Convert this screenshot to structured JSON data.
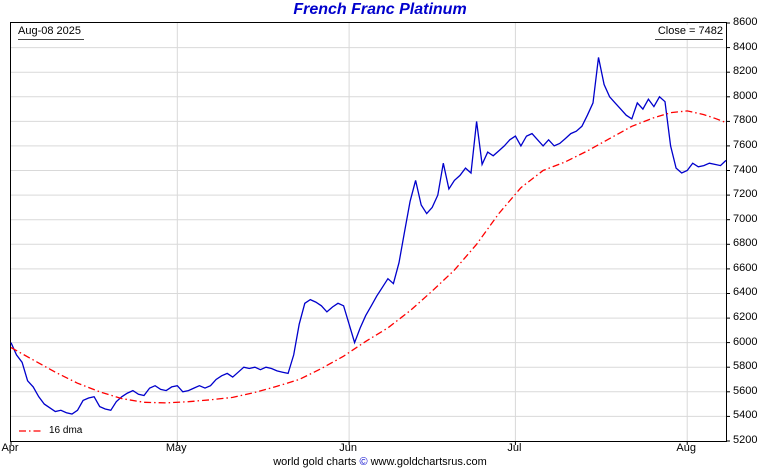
{
  "title": "French Franc Platinum",
  "header": {
    "date_label": "Aug-08 2025",
    "close_label": "Close = 7482"
  },
  "legend": {
    "dma_label": "16 dma"
  },
  "footer": {
    "prefix": "world gold charts ",
    "copyright": "©",
    "suffix": " www.goldchartsrus.com"
  },
  "colors": {
    "title": "#0000cc",
    "price_line": "#0000cc",
    "dma_line": "#ff0000",
    "grid": "#d9d9d9",
    "border": "#000000"
  },
  "chart_data": {
    "type": "line",
    "title": "French Franc Platinum",
    "date": "Aug-08 2025",
    "close": 7482,
    "legend_position": "bottom-left",
    "grid": true,
    "x_axis": {
      "x_max": 129,
      "ticks": [
        {
          "label": "Apr",
          "day": 0
        },
        {
          "label": "May",
          "day": 30
        },
        {
          "label": "Jun",
          "day": 61
        },
        {
          "label": "Jul",
          "day": 91
        },
        {
          "label": "Aug",
          "day": 122
        }
      ]
    },
    "y_axis": {
      "side": "right",
      "ylim": [
        5200,
        8600
      ],
      "ticks": [
        5200,
        5400,
        5600,
        5800,
        6000,
        6200,
        6400,
        6600,
        6800,
        7000,
        7200,
        7400,
        7600,
        7800,
        8000,
        8200,
        8400,
        8600
      ]
    },
    "series": [
      {
        "id": "price-series",
        "name": "price",
        "color": "#0000cc",
        "style": "solid",
        "points": [
          [
            0,
            6000
          ],
          [
            1,
            5900
          ],
          [
            2,
            5840
          ],
          [
            3,
            5690
          ],
          [
            4,
            5640
          ],
          [
            5,
            5560
          ],
          [
            6,
            5500
          ],
          [
            7,
            5470
          ],
          [
            8,
            5440
          ],
          [
            9,
            5450
          ],
          [
            10,
            5430
          ],
          [
            11,
            5420
          ],
          [
            12,
            5450
          ],
          [
            13,
            5530
          ],
          [
            14,
            5550
          ],
          [
            15,
            5560
          ],
          [
            16,
            5480
          ],
          [
            17,
            5460
          ],
          [
            18,
            5450
          ],
          [
            19,
            5520
          ],
          [
            20,
            5560
          ],
          [
            21,
            5590
          ],
          [
            22,
            5610
          ],
          [
            23,
            5580
          ],
          [
            24,
            5570
          ],
          [
            25,
            5630
          ],
          [
            26,
            5650
          ],
          [
            27,
            5620
          ],
          [
            28,
            5610
          ],
          [
            29,
            5640
          ],
          [
            30,
            5650
          ],
          [
            31,
            5600
          ],
          [
            32,
            5610
          ],
          [
            33,
            5630
          ],
          [
            34,
            5650
          ],
          [
            35,
            5630
          ],
          [
            36,
            5650
          ],
          [
            37,
            5700
          ],
          [
            38,
            5730
          ],
          [
            39,
            5750
          ],
          [
            40,
            5720
          ],
          [
            41,
            5760
          ],
          [
            42,
            5800
          ],
          [
            43,
            5790
          ],
          [
            44,
            5800
          ],
          [
            45,
            5780
          ],
          [
            46,
            5800
          ],
          [
            47,
            5790
          ],
          [
            48,
            5770
          ],
          [
            49,
            5760
          ],
          [
            50,
            5750
          ],
          [
            51,
            5900
          ],
          [
            52,
            6150
          ],
          [
            53,
            6320
          ],
          [
            54,
            6350
          ],
          [
            55,
            6330
          ],
          [
            56,
            6300
          ],
          [
            57,
            6250
          ],
          [
            58,
            6290
          ],
          [
            59,
            6320
          ],
          [
            60,
            6300
          ],
          [
            61,
            6150
          ],
          [
            62,
            6000
          ],
          [
            63,
            6120
          ],
          [
            64,
            6220
          ],
          [
            65,
            6300
          ],
          [
            66,
            6380
          ],
          [
            67,
            6450
          ],
          [
            68,
            6520
          ],
          [
            69,
            6480
          ],
          [
            70,
            6650
          ],
          [
            71,
            6900
          ],
          [
            72,
            7150
          ],
          [
            73,
            7320
          ],
          [
            74,
            7120
          ],
          [
            75,
            7050
          ],
          [
            76,
            7100
          ],
          [
            77,
            7200
          ],
          [
            78,
            7460
          ],
          [
            79,
            7250
          ],
          [
            80,
            7320
          ],
          [
            81,
            7360
          ],
          [
            82,
            7420
          ],
          [
            83,
            7380
          ],
          [
            84,
            7800
          ],
          [
            85,
            7450
          ],
          [
            86,
            7550
          ],
          [
            87,
            7520
          ],
          [
            88,
            7560
          ],
          [
            89,
            7600
          ],
          [
            90,
            7650
          ],
          [
            91,
            7680
          ],
          [
            92,
            7600
          ],
          [
            93,
            7680
          ],
          [
            94,
            7700
          ],
          [
            95,
            7650
          ],
          [
            96,
            7600
          ],
          [
            97,
            7650
          ],
          [
            98,
            7600
          ],
          [
            99,
            7620
          ],
          [
            100,
            7660
          ],
          [
            101,
            7700
          ],
          [
            102,
            7720
          ],
          [
            103,
            7760
          ],
          [
            104,
            7850
          ],
          [
            105,
            7950
          ],
          [
            106,
            8320
          ],
          [
            107,
            8100
          ],
          [
            108,
            8000
          ],
          [
            109,
            7950
          ],
          [
            110,
            7900
          ],
          [
            111,
            7850
          ],
          [
            112,
            7820
          ],
          [
            113,
            7950
          ],
          [
            114,
            7900
          ],
          [
            115,
            7980
          ],
          [
            116,
            7920
          ],
          [
            117,
            8000
          ],
          [
            118,
            7960
          ],
          [
            119,
            7600
          ],
          [
            120,
            7420
          ],
          [
            121,
            7380
          ],
          [
            122,
            7400
          ],
          [
            123,
            7460
          ],
          [
            124,
            7430
          ],
          [
            125,
            7440
          ],
          [
            126,
            7460
          ],
          [
            127,
            7450
          ],
          [
            128,
            7440
          ],
          [
            129,
            7482
          ]
        ]
      },
      {
        "id": "dma-series",
        "name": "16 dma",
        "color": "#ff0000",
        "style": "dash-dot",
        "dash": "7 3 1.5 3",
        "points": [
          [
            0,
            5960
          ],
          [
            4,
            5860
          ],
          [
            8,
            5760
          ],
          [
            12,
            5670
          ],
          [
            16,
            5600
          ],
          [
            20,
            5545
          ],
          [
            24,
            5515
          ],
          [
            28,
            5510
          ],
          [
            32,
            5520
          ],
          [
            36,
            5535
          ],
          [
            40,
            5555
          ],
          [
            44,
            5595
          ],
          [
            48,
            5645
          ],
          [
            52,
            5700
          ],
          [
            56,
            5790
          ],
          [
            60,
            5890
          ],
          [
            62,
            5950
          ],
          [
            64,
            6010
          ],
          [
            68,
            6120
          ],
          [
            72,
            6260
          ],
          [
            76,
            6420
          ],
          [
            80,
            6590
          ],
          [
            84,
            6800
          ],
          [
            88,
            7050
          ],
          [
            92,
            7260
          ],
          [
            96,
            7400
          ],
          [
            100,
            7470
          ],
          [
            104,
            7560
          ],
          [
            108,
            7660
          ],
          [
            112,
            7760
          ],
          [
            116,
            7830
          ],
          [
            119,
            7870
          ],
          [
            122,
            7885
          ],
          [
            125,
            7855
          ],
          [
            127,
            7825
          ],
          [
            129,
            7790
          ]
        ]
      }
    ]
  }
}
